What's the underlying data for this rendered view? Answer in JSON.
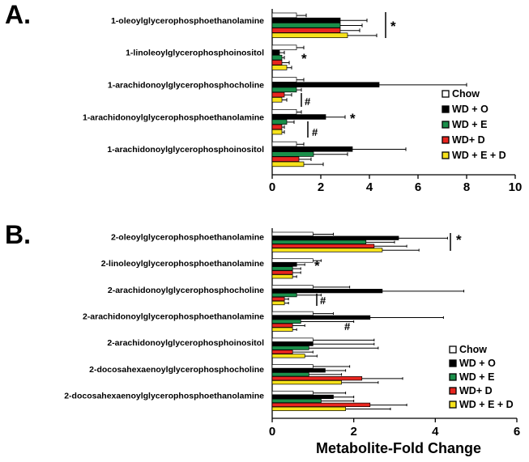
{
  "panel_a_label": "A.",
  "panel_b_label": "B.",
  "xlabel": "Metabolite-Fold Change",
  "colors": {
    "Chow": "#ffffff",
    "WD + O": "#000000",
    "WD + E": "#1a8f4a",
    "WD+ D": "#e8251f",
    "WD + E + D": "#f7e21b"
  },
  "chart_data": [
    {
      "type": "bar",
      "orientation": "horizontal",
      "panel": "A.",
      "categories": [
        "1-oleoylglycerophosphoethanolamine",
        "1-linoleoylglycerophosphoinositol",
        "1-arachidonoylglycerophosphocholine",
        "1-arachidonoylglycerophosphoethanolamine",
        "1-arachidonoylglycerophosphoinositol"
      ],
      "series": [
        {
          "name": "Chow",
          "values": [
            1.0,
            1.0,
            1.0,
            1.0,
            1.0
          ],
          "errors": [
            0.4,
            0.3,
            0.3,
            0.2,
            0.3
          ]
        },
        {
          "name": "WD + O",
          "values": [
            2.8,
            0.3,
            4.4,
            2.2,
            3.3
          ],
          "errors": [
            1.1,
            0.2,
            3.6,
            0.8,
            2.2
          ]
        },
        {
          "name": "WD + E",
          "values": [
            2.8,
            0.4,
            1.0,
            0.6,
            1.7
          ],
          "errors": [
            0.9,
            0.1,
            0.2,
            0.3,
            1.4
          ]
        },
        {
          "name": "WD+ D",
          "values": [
            2.8,
            0.4,
            0.5,
            0.4,
            1.1
          ],
          "errors": [
            0.8,
            0.3,
            0.3,
            0.1,
            0.5
          ]
        },
        {
          "name": "WD + E + D",
          "values": [
            3.1,
            0.6,
            0.4,
            0.4,
            1.3
          ],
          "errors": [
            1.2,
            0.2,
            0.2,
            0.1,
            0.8
          ]
        }
      ],
      "xlim": [
        0,
        10
      ],
      "xticks": [
        "0",
        "2",
        "4",
        "6",
        "8",
        "10"
      ],
      "annotations": [
        {
          "text": "*",
          "category_index": 0
        },
        {
          "text": "*",
          "category_index": 1
        },
        {
          "text": "#",
          "category_index": 2
        },
        {
          "text": "*",
          "category_index": 3
        },
        {
          "text": "#",
          "category_index": 3
        }
      ],
      "legend": {
        "position": "right",
        "entries": [
          "Chow",
          "WD + O",
          "WD + E",
          "WD+ D",
          "WD + E + D"
        ]
      }
    },
    {
      "type": "bar",
      "orientation": "horizontal",
      "panel": "B.",
      "categories": [
        "2-oleoylglycerophosphoethanolamine",
        "2-linoleoylglycerophosphoethanolamine",
        "2-arachidonoylglycerophosphocholine",
        "2-arachidonoylglycerophosphoethanolamine",
        "2-arachidonoylglycerophosphoinositol",
        "2-docosahexaenoylglycerophosphocholine",
        "2-docosahexaenoylglycerophosphoethanolamine"
      ],
      "series": [
        {
          "name": "Chow",
          "values": [
            1.0,
            1.0,
            1.0,
            1.0,
            1.0,
            1.0,
            1.0
          ],
          "errors": [
            0.5,
            0.2,
            0.9,
            0.5,
            1.5,
            0.9,
            0.8
          ]
        },
        {
          "name": "WD + O",
          "values": [
            3.1,
            0.6,
            2.7,
            2.4,
            1.0,
            1.3,
            1.5
          ],
          "errors": [
            1.2,
            0.2,
            2.0,
            1.8,
            1.5,
            0.5,
            0.5
          ]
        },
        {
          "name": "WD + E",
          "values": [
            2.3,
            0.5,
            0.6,
            0.7,
            0.9,
            0.9,
            1.2
          ],
          "errors": [
            0.7,
            0.2,
            0.6,
            1.3,
            1.7,
            0.8,
            0.8
          ]
        },
        {
          "name": "WD+ D",
          "values": [
            2.5,
            0.5,
            0.3,
            0.5,
            0.5,
            2.2,
            2.4
          ],
          "errors": [
            0.8,
            0.2,
            0.1,
            0.3,
            0.5,
            1.0,
            0.9
          ]
        },
        {
          "name": "WD + E + D",
          "values": [
            2.7,
            0.5,
            0.3,
            0.5,
            0.8,
            1.7,
            1.8
          ],
          "errors": [
            0.9,
            0.1,
            0.1,
            0.1,
            0.3,
            0.9,
            1.1
          ]
        }
      ],
      "xlim": [
        0,
        6
      ],
      "xticks": [
        "0",
        "2",
        "4",
        "6"
      ],
      "xlabel": "Metabolite-Fold Change",
      "annotations": [
        {
          "text": "*",
          "category_index": 0
        },
        {
          "text": "*",
          "category_index": 1
        },
        {
          "text": "#",
          "category_index": 2
        },
        {
          "text": "#",
          "category_index": 3
        }
      ],
      "legend": {
        "position": "right",
        "entries": [
          "Chow",
          "WD + O",
          "WD + E",
          "WD+ D",
          "WD + E + D"
        ]
      }
    }
  ]
}
